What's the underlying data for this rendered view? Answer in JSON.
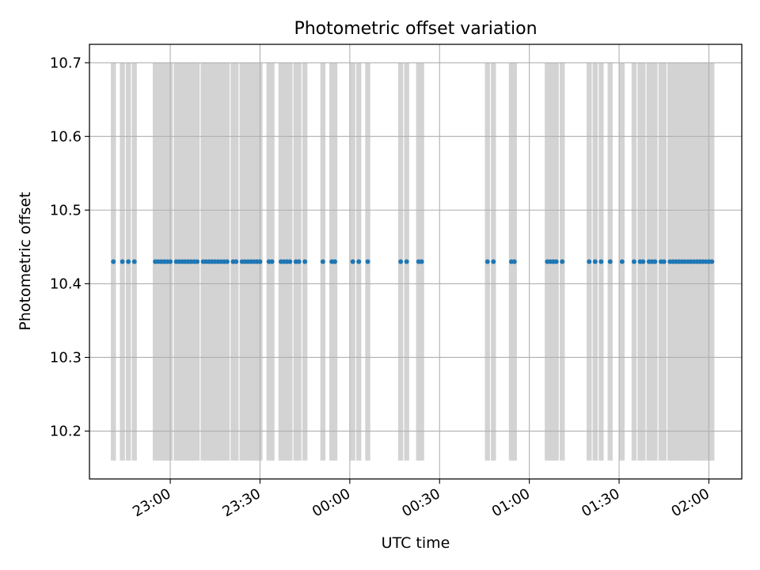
{
  "chart_data": {
    "type": "scatter",
    "title": "Photometric offset variation",
    "xlabel": "UTC time",
    "ylabel": "Photometric offset",
    "x_ticks": [
      "23:00",
      "23:30",
      "00:00",
      "00:30",
      "01:00",
      "01:30",
      "02:00"
    ],
    "y_ticks": [
      "10.2",
      "10.3",
      "10.4",
      "10.5",
      "10.6",
      "10.7"
    ],
    "y_tick_values": [
      10.2,
      10.3,
      10.4,
      10.5,
      10.6,
      10.7
    ],
    "xlim": [
      "22:33",
      "02:11"
    ],
    "ylim": [
      10.135,
      10.725
    ],
    "grid": true,
    "shaded_band": {
      "color": "#d3d3d3",
      "ymin": 10.16,
      "ymax": 10.7,
      "times": [
        "22:41",
        "22:44",
        "22:46",
        "22:48",
        "22:55",
        "22:56",
        "22:57",
        "22:58",
        "22:59",
        "23:00",
        "23:02",
        "23:03",
        "23:04",
        "23:05",
        "23:06",
        "23:07",
        "23:08",
        "23:09",
        "23:11",
        "23:12",
        "23:13",
        "23:14",
        "23:15",
        "23:16",
        "23:17",
        "23:18",
        "23:19",
        "23:21",
        "23:22",
        "23:24",
        "23:25",
        "23:26",
        "23:27",
        "23:28",
        "23:29",
        "23:30",
        "23:33",
        "23:34",
        "23:37",
        "23:38",
        "23:39",
        "23:40",
        "23:42",
        "23:43",
        "23:45",
        "23:51",
        "23:54",
        "23:55",
        "00:01",
        "00:03",
        "00:06",
        "00:17",
        "00:19",
        "00:23",
        "00:24",
        "00:46",
        "00:48",
        "00:54",
        "00:55",
        "01:06",
        "01:07",
        "01:08",
        "01:09",
        "01:11",
        "01:20",
        "01:22",
        "01:24",
        "01:27",
        "01:31",
        "01:35",
        "01:37",
        "01:38",
        "01:40",
        "01:41",
        "01:42",
        "01:44",
        "01:45",
        "01:47",
        "01:48",
        "01:49",
        "01:50",
        "01:51",
        "01:52",
        "01:53",
        "01:54",
        "01:55",
        "01:56",
        "01:57",
        "01:58",
        "01:59",
        "02:00",
        "02:01"
      ]
    },
    "series": [
      {
        "color": "#1f77b4",
        "x": [
          "22:41",
          "22:44",
          "22:46",
          "22:48",
          "22:55",
          "22:56",
          "22:57",
          "22:58",
          "22:59",
          "23:00",
          "23:02",
          "23:03",
          "23:04",
          "23:05",
          "23:06",
          "23:07",
          "23:08",
          "23:09",
          "23:11",
          "23:12",
          "23:13",
          "23:14",
          "23:15",
          "23:16",
          "23:17",
          "23:18",
          "23:19",
          "23:21",
          "23:22",
          "23:24",
          "23:25",
          "23:26",
          "23:27",
          "23:28",
          "23:29",
          "23:30",
          "23:33",
          "23:34",
          "23:37",
          "23:38",
          "23:39",
          "23:40",
          "23:42",
          "23:43",
          "23:45",
          "23:51",
          "23:54",
          "23:55",
          "00:01",
          "00:03",
          "00:06",
          "00:17",
          "00:19",
          "00:23",
          "00:24",
          "00:46",
          "00:48",
          "00:54",
          "00:55",
          "01:06",
          "01:07",
          "01:08",
          "01:09",
          "01:11",
          "01:20",
          "01:22",
          "01:24",
          "01:27",
          "01:31",
          "01:35",
          "01:37",
          "01:38",
          "01:40",
          "01:41",
          "01:42",
          "01:44",
          "01:45",
          "01:47",
          "01:48",
          "01:49",
          "01:50",
          "01:51",
          "01:52",
          "01:53",
          "01:54",
          "01:55",
          "01:56",
          "01:57",
          "01:58",
          "01:59",
          "02:00",
          "02:01"
        ],
        "y": 10.43
      }
    ]
  }
}
